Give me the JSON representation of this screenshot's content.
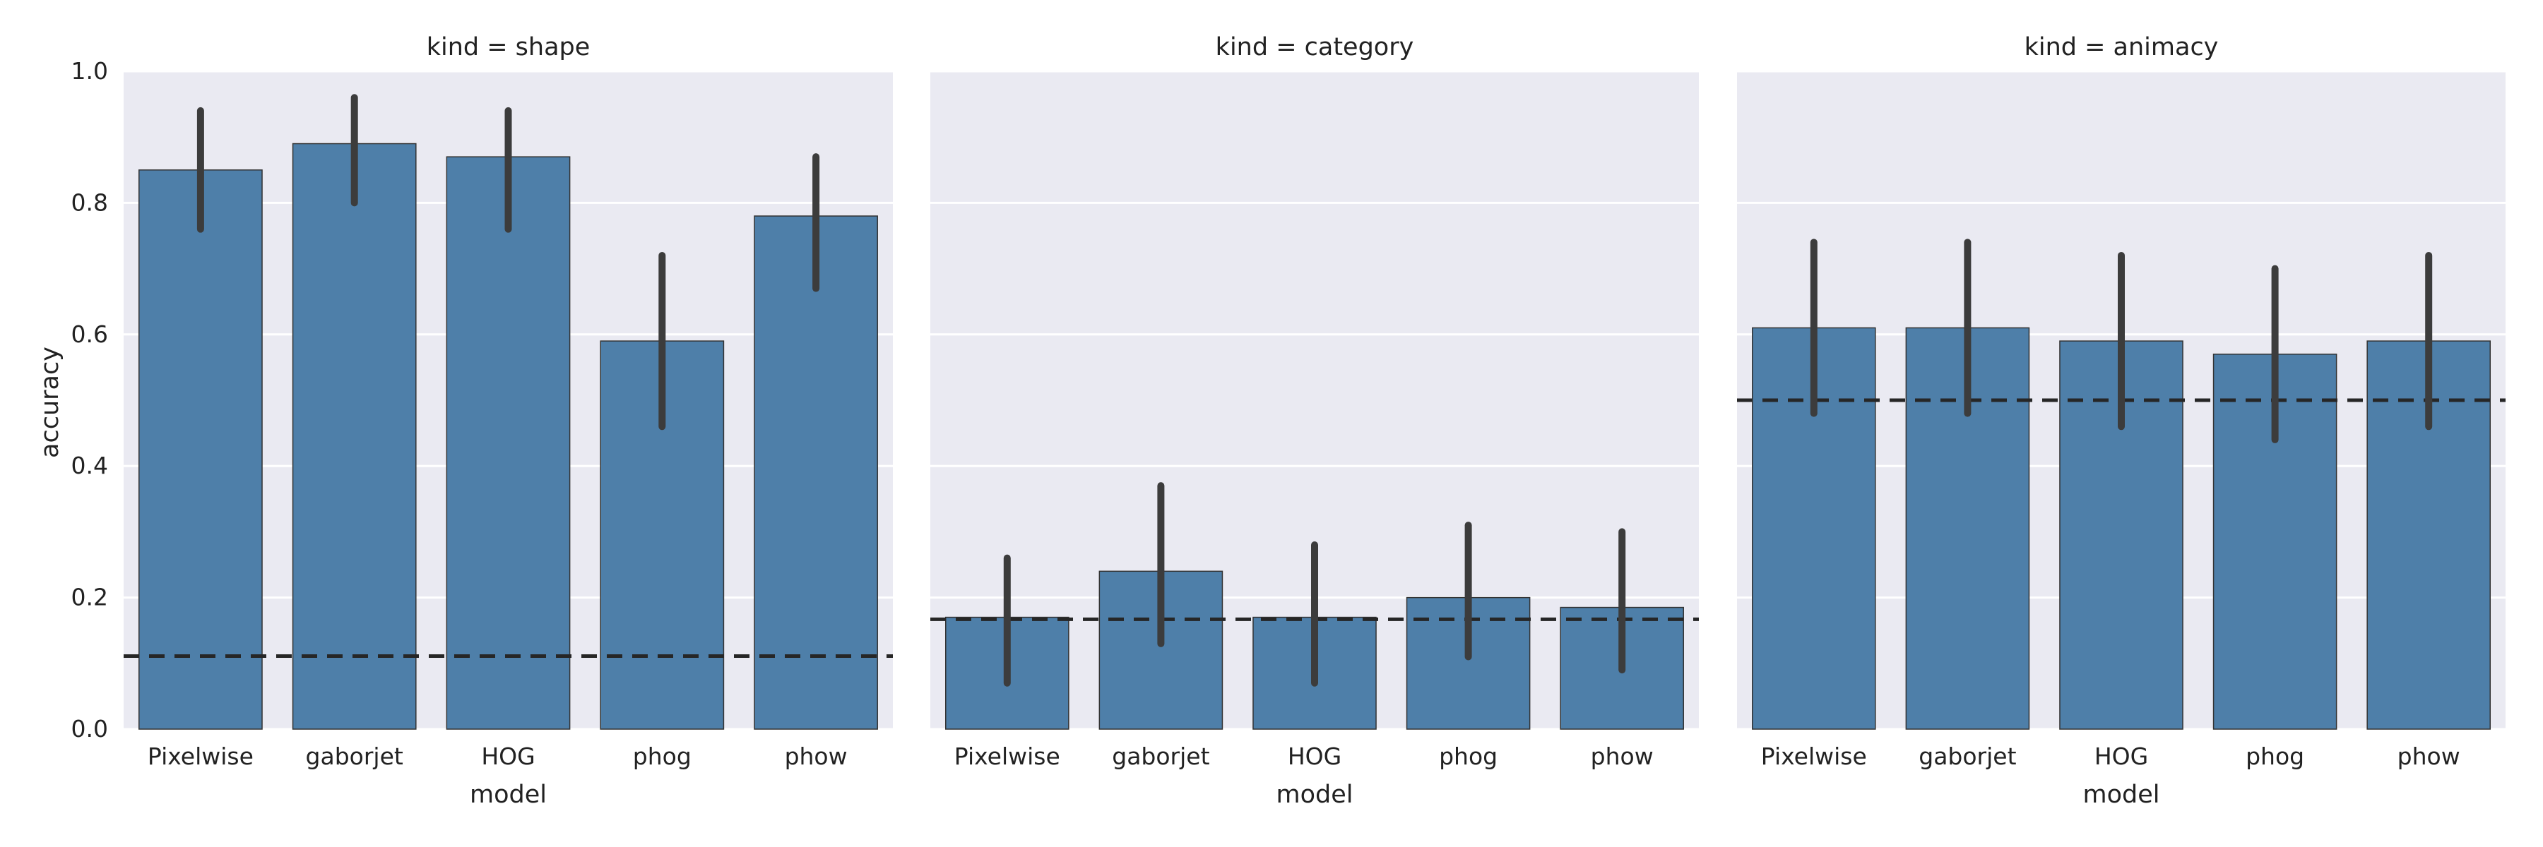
{
  "figure": {
    "ylabel": "accuracy",
    "xlabel": "model",
    "colors": {
      "background": "#EAEAF2",
      "bar": "#4E7FA9",
      "bar_edge": "#333333",
      "error_bar": "#3C3C3C",
      "chance_line": "#262626",
      "grid": "#FFFFFF"
    }
  },
  "chart_data": [
    {
      "type": "bar",
      "title": "kind = shape",
      "xlabel": "model",
      "ylabel": "accuracy",
      "ylim": [
        0,
        1.0
      ],
      "yticks": [
        "0.0",
        "0.2",
        "0.4",
        "0.6",
        "0.8",
        "1.0"
      ],
      "grid": true,
      "categories": [
        "Pixelwise",
        "gaborjet",
        "HOG",
        "phog",
        "phow"
      ],
      "values": [
        0.85,
        0.89,
        0.87,
        0.59,
        0.78
      ],
      "error_low": [
        0.76,
        0.8,
        0.76,
        0.46,
        0.67
      ],
      "error_high": [
        0.94,
        0.96,
        0.94,
        0.72,
        0.87
      ],
      "chance_level": 0.111
    },
    {
      "type": "bar",
      "title": "kind = category",
      "xlabel": "model",
      "ylabel": "accuracy",
      "ylim": [
        0,
        1.0
      ],
      "yticks": [
        "0.0",
        "0.2",
        "0.4",
        "0.6",
        "0.8",
        "1.0"
      ],
      "grid": true,
      "categories": [
        "Pixelwise",
        "gaborjet",
        "HOG",
        "phog",
        "phow"
      ],
      "values": [
        0.17,
        0.24,
        0.17,
        0.2,
        0.185
      ],
      "error_low": [
        0.07,
        0.13,
        0.07,
        0.11,
        0.09
      ],
      "error_high": [
        0.26,
        0.37,
        0.28,
        0.31,
        0.3
      ],
      "chance_level": 0.167
    },
    {
      "type": "bar",
      "title": "kind = animacy",
      "xlabel": "model",
      "ylabel": "accuracy",
      "ylim": [
        0,
        1.0
      ],
      "yticks": [
        "0.0",
        "0.2",
        "0.4",
        "0.6",
        "0.8",
        "1.0"
      ],
      "grid": true,
      "categories": [
        "Pixelwise",
        "gaborjet",
        "HOG",
        "phog",
        "phow"
      ],
      "values": [
        0.61,
        0.61,
        0.59,
        0.57,
        0.59
      ],
      "error_low": [
        0.48,
        0.48,
        0.46,
        0.44,
        0.46
      ],
      "error_high": [
        0.74,
        0.74,
        0.72,
        0.7,
        0.72
      ],
      "chance_level": 0.5
    }
  ]
}
